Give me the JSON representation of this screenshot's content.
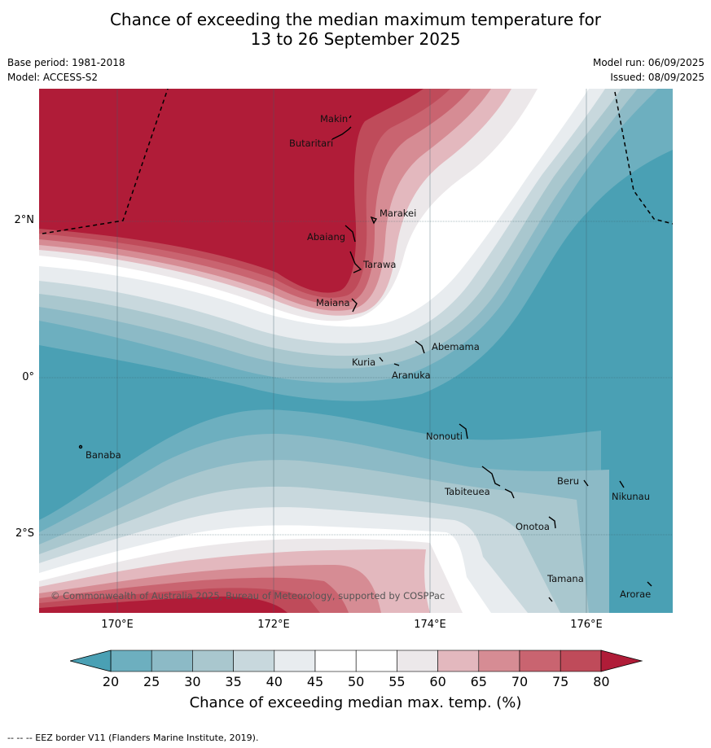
{
  "title_line1": "Chance of exceeding the median maximum temperature for",
  "title_line2": "13 to 26 September 2025",
  "base_period": "Base period: 1981-2018",
  "model": "Model: ACCESS-S2",
  "model_run": "Model run: 06/09/2025",
  "issued": "Issued: 08/09/2025",
  "copyright": "© Commonwealth of Australia 2025, Bureau of Meteorology, supported by COSPPac",
  "lon_labels": [
    "170°E",
    "172°E",
    "174°E",
    "176°E"
  ],
  "lat_labels": [
    "2°N",
    "0°",
    "2°S"
  ],
  "places": [
    "Makin",
    "Butaritari",
    "Marakei",
    "Abaiang",
    "Tarawa",
    "Maiana",
    "Abemama",
    "Kuria",
    "Aranuka",
    "Nonouti",
    "Banaba",
    "Beru",
    "Nikunau",
    "Tabiteuea",
    "Onotoa",
    "Tamana",
    "Arorae"
  ],
  "colorbar": {
    "ticks": [
      "20",
      "25",
      "30",
      "35",
      "40",
      "45",
      "50",
      "55",
      "60",
      "65",
      "70",
      "75",
      "80"
    ],
    "colors": [
      "#4aa0b4",
      "#6dafbf",
      "#8cbac6",
      "#a9c7ce",
      "#c8d8dd",
      "#e8ecef",
      "#ffffff",
      "#ffffff",
      "#ece8ea",
      "#e3b8be",
      "#d68c94",
      "#c96470",
      "#bf4b5a",
      "#b01c38"
    ],
    "label": "Chance of exceeding median max. temp. (%)"
  },
  "footer": "--  --  -- EEZ border V11 (Flanders Marine Institute, 2019)."
}
